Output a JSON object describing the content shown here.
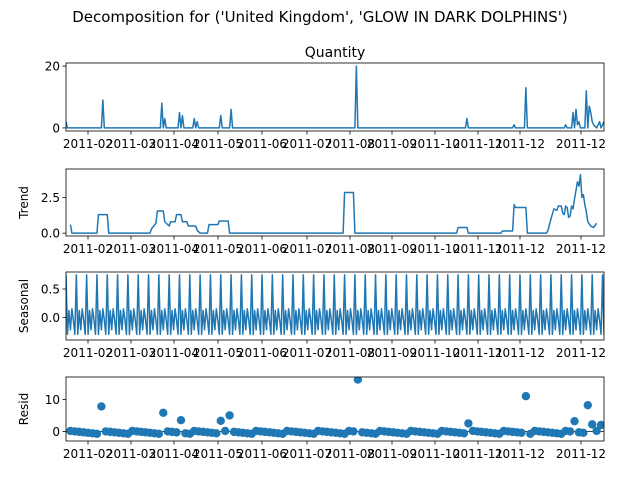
{
  "figure": {
    "suptitle": "Decomposition for ('United Kingdom', 'GLOW IN DARK DOLPHINS')"
  },
  "colors": {
    "series": "#1f77b4",
    "axis": "#000000",
    "background": "#ffffff"
  },
  "chart_data": [
    {
      "type": "line",
      "title": "Quantity",
      "ylabel": "",
      "ylim": [
        -1,
        21
      ],
      "yticks": [
        0,
        20
      ],
      "xtick_labels": [
        "2011-02",
        "2011-03",
        "2011-04",
        "2011-05",
        "2011-06",
        "2011-07",
        "2011-08",
        "2011-09",
        "2011-10",
        "2011-11",
        "2011-12",
        "2011-12"
      ],
      "points": [
        [
          0,
          2
        ],
        [
          1,
          0
        ],
        [
          24,
          0
        ],
        [
          25,
          9
        ],
        [
          26,
          0
        ],
        [
          64,
          0
        ],
        [
          65,
          8
        ],
        [
          66,
          0
        ],
        [
          67,
          3
        ],
        [
          68,
          0
        ],
        [
          76,
          0
        ],
        [
          77,
          5
        ],
        [
          78,
          0
        ],
        [
          79,
          4
        ],
        [
          80,
          0
        ],
        [
          86,
          0
        ],
        [
          87,
          3
        ],
        [
          88,
          0
        ],
        [
          89,
          2
        ],
        [
          90,
          0
        ],
        [
          104,
          0
        ],
        [
          105,
          4
        ],
        [
          106,
          0
        ],
        [
          111,
          0
        ],
        [
          112,
          6
        ],
        [
          113,
          0
        ],
        [
          196,
          0
        ],
        [
          197,
          20
        ],
        [
          198,
          0
        ],
        [
          271,
          0
        ],
        [
          272,
          3
        ],
        [
          273,
          0
        ],
        [
          303,
          0
        ],
        [
          304,
          1
        ],
        [
          305,
          0
        ],
        [
          311,
          0
        ],
        [
          312,
          13
        ],
        [
          313,
          0
        ],
        [
          338,
          0
        ],
        [
          339,
          1
        ],
        [
          340,
          0
        ],
        [
          343,
          0
        ],
        [
          344,
          5
        ],
        [
          345,
          0
        ],
        [
          346,
          6
        ],
        [
          347,
          1
        ],
        [
          348,
          2
        ],
        [
          349,
          0
        ],
        [
          352,
          0
        ],
        [
          353,
          12
        ],
        [
          354,
          0
        ],
        [
          355,
          7
        ],
        [
          356,
          5
        ],
        [
          357,
          2
        ],
        [
          358,
          1
        ],
        [
          360,
          0
        ],
        [
          362,
          2
        ],
        [
          363,
          0
        ],
        [
          365,
          2
        ]
      ]
    },
    {
      "type": "line",
      "title": "",
      "ylabel": "Trend",
      "ylim": [
        -0.2,
        4.5
      ],
      "yticks": [
        0.0,
        2.5
      ],
      "ytick_labels": [
        "0.0",
        "2.5"
      ],
      "xtick_labels": [
        "2011-02",
        "2011-03",
        "2011-04",
        "2011-05",
        "2011-06",
        "2011-07",
        "2011-08",
        "2011-09",
        "2011-10",
        "2011-11",
        "2011-12",
        "2011-12"
      ],
      "points": [
        [
          3,
          0.6
        ],
        [
          4,
          0
        ],
        [
          21,
          0
        ],
        [
          22,
          1.3
        ],
        [
          28,
          1.3
        ],
        [
          29,
          0
        ],
        [
          57,
          0
        ],
        [
          58,
          0.3
        ],
        [
          61,
          0.7
        ],
        [
          62,
          1.55
        ],
        [
          66,
          1.55
        ],
        [
          67,
          0.8
        ],
        [
          70,
          0.5
        ],
        [
          71,
          0.8
        ],
        [
          74,
          0.8
        ],
        [
          75,
          1.3
        ],
        [
          78,
          1.3
        ],
        [
          79,
          0.8
        ],
        [
          82,
          0.8
        ],
        [
          83,
          0.5
        ],
        [
          86,
          0.5
        ],
        [
          88,
          0.5
        ],
        [
          89,
          0.2
        ],
        [
          91,
          0
        ],
        [
          96,
          0
        ],
        [
          97,
          0.6
        ],
        [
          103,
          0.6
        ],
        [
          104,
          0.85
        ],
        [
          110,
          0.85
        ],
        [
          111,
          0
        ],
        [
          188,
          0
        ],
        [
          189,
          2.85
        ],
        [
          195,
          2.85
        ],
        [
          196,
          0
        ],
        [
          265,
          0
        ],
        [
          266,
          0.4
        ],
        [
          272,
          0.4
        ],
        [
          273,
          0
        ],
        [
          295,
          0
        ],
        [
          296,
          0.15
        ],
        [
          303,
          0.15
        ],
        [
          304,
          2.0
        ],
        [
          305,
          1.8
        ],
        [
          312,
          1.8
        ],
        [
          313,
          0
        ],
        [
          326,
          0
        ],
        [
          327,
          0.2
        ],
        [
          329,
          1.0
        ],
        [
          331,
          1.7
        ],
        [
          333,
          1.6
        ],
        [
          334,
          1.9
        ],
        [
          336,
          1.9
        ],
        [
          337,
          1.4
        ],
        [
          338,
          1.3
        ],
        [
          339,
          1.9
        ],
        [
          340,
          1.8
        ],
        [
          341,
          1.1
        ],
        [
          342,
          1.2
        ],
        [
          343,
          1.9
        ],
        [
          344,
          1.7
        ],
        [
          345,
          2.4
        ],
        [
          346,
          3.0
        ],
        [
          347,
          3.6
        ],
        [
          348,
          3.3
        ],
        [
          349,
          4.1
        ],
        [
          350,
          2.5
        ],
        [
          351,
          2.7
        ],
        [
          352,
          2.0
        ],
        [
          353,
          1.5
        ],
        [
          354,
          0.8
        ],
        [
          356,
          0.5
        ],
        [
          358,
          0.4
        ],
        [
          360,
          0.7
        ]
      ]
    },
    {
      "type": "line",
      "title": "",
      "ylabel": "Seasonal",
      "ylim": [
        -0.4,
        0.8
      ],
      "yticks": [
        0.0,
        0.5
      ],
      "ytick_labels": [
        "0.0",
        "0.5"
      ],
      "xtick_labels": [
        "2011-02",
        "2011-03",
        "2011-04",
        "2011-05",
        "2011-06",
        "2011-07",
        "2011-08",
        "2011-09",
        "2011-10",
        "2011-11",
        "2011-12",
        "2011-12"
      ],
      "period": 7,
      "pattern": [
        0.75,
        -0.3,
        0.12,
        -0.22,
        0.15,
        -0.05,
        -0.3
      ]
    },
    {
      "type": "scatter",
      "title": "",
      "ylabel": "Resid",
      "ylim": [
        -3,
        17
      ],
      "yticks": [
        0,
        10
      ],
      "xtick_labels": [
        "2011-02",
        "2011-03",
        "2011-04",
        "2011-05",
        "2011-06",
        "2011-07",
        "2011-08",
        "2011-09",
        "2011-10",
        "2011-11",
        "2011-12",
        "2011-12"
      ],
      "outliers": [
        [
          25,
          7.8
        ],
        [
          65,
          5.8
        ],
        [
          77,
          3.5
        ],
        [
          105,
          3.3
        ],
        [
          112,
          5.0
        ],
        [
          197,
          16.2
        ],
        [
          272,
          2.5
        ],
        [
          312,
          11.0
        ],
        [
          344,
          3.2
        ],
        [
          346,
          3.2
        ],
        [
          353,
          8.2
        ],
        [
          355,
          3.2
        ],
        [
          356,
          2.2
        ],
        [
          362,
          2.0
        ]
      ]
    }
  ]
}
